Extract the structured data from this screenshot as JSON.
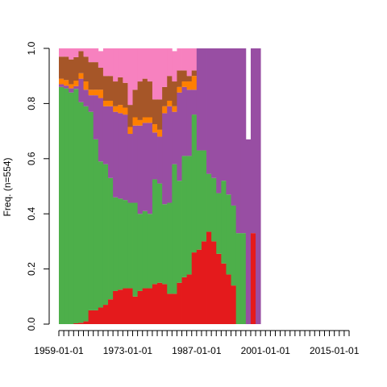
{
  "chart_data": {
    "type": "area",
    "title": "",
    "xlabel": "",
    "ylabel": "Freq. (n=554)",
    "x_tick_labels": [
      "1959-01-01",
      "1973-01-01",
      "1987-01-01",
      "2001-01-01",
      "2015-01-01"
    ],
    "x_tick_years": [
      1959,
      1973,
      1987,
      2001,
      2015
    ],
    "x_minor_tick_interval_years": 1,
    "xlim": [
      1959,
      2018
    ],
    "y_tick_labels": [
      "0.0",
      "0.2",
      "0.4",
      "0.6",
      "0.8",
      "1.0"
    ],
    "ylim": [
      0,
      1
    ],
    "stacked": true,
    "step": true,
    "legend": "none",
    "grid": false,
    "years": [
      1959,
      1960,
      1961,
      1962,
      1963,
      1964,
      1965,
      1966,
      1967,
      1968,
      1969,
      1970,
      1971,
      1972,
      1973,
      1974,
      1975,
      1976,
      1977,
      1978,
      1979,
      1980,
      1981,
      1982,
      1983,
      1984,
      1985,
      1986,
      1987,
      1988,
      1989,
      1990,
      1991,
      1992,
      1993,
      1994,
      1995,
      1996,
      1997,
      1998,
      1999,
      2000,
      2001,
      2002,
      2003,
      2004
    ],
    "series": [
      {
        "color": "#E41A1C",
        "values": [
          0,
          0,
          0,
          0.003,
          0.005,
          0.01,
          0.05,
          0.05,
          0.06,
          0.07,
          0.09,
          0.12,
          0.125,
          0.13,
          0.13,
          0.1,
          0.12,
          0.13,
          0.13,
          0.145,
          0.15,
          0.145,
          0.11,
          0.11,
          0.15,
          0.17,
          0.18,
          0.26,
          0.27,
          0.3,
          0.335,
          0.3,
          0.255,
          0.22,
          0.18,
          0.14,
          0,
          0,
          0,
          0.33,
          0,
          0,
          0,
          0,
          0,
          0
        ]
      },
      {
        "color": "#4DAF4A",
        "values": [
          0.86,
          0.855,
          0.84,
          0.85,
          0.8,
          0.78,
          0.72,
          0.62,
          0.53,
          0.51,
          0.44,
          0.34,
          0.33,
          0.32,
          0.31,
          0.34,
          0.28,
          0.28,
          0.27,
          0.38,
          0.36,
          0.29,
          0.33,
          0.47,
          0.37,
          0.44,
          0.43,
          0.5,
          0.36,
          0.33,
          0.21,
          0.23,
          0.22,
          0.3,
          0.29,
          0.29,
          0.33,
          0.33,
          0,
          0,
          0,
          0,
          0,
          0,
          0,
          0
        ]
      },
      {
        "color": "#984EA3",
        "values": [
          0.01,
          0.01,
          0.015,
          0.01,
          0.085,
          0.06,
          0.06,
          0.16,
          0.23,
          0.21,
          0.26,
          0.31,
          0.31,
          0.31,
          0.25,
          0.28,
          0.32,
          0.32,
          0.33,
          0.17,
          0.17,
          0.33,
          0.35,
          0.19,
          0.32,
          0.25,
          0.24,
          0.09,
          0.37,
          0.37,
          0.455,
          0.47,
          0.525,
          0.48,
          0.53,
          0.57,
          0.67,
          0.67,
          0.67,
          0.67,
          1.0,
          0,
          0,
          0,
          0,
          0
        ]
      },
      {
        "color": "#FF7F00",
        "values": [
          0.02,
          0.02,
          0.015,
          0.02,
          0.02,
          0.03,
          0.02,
          0.02,
          0.03,
          0.02,
          0.02,
          0.02,
          0.03,
          0.025,
          0.025,
          0.03,
          0.02,
          0.02,
          0.02,
          0.03,
          0.025,
          0.025,
          0.02,
          0.02,
          0.02,
          0.02,
          0.03,
          0.05,
          0,
          0,
          0,
          0,
          0,
          0,
          0,
          0,
          0,
          0,
          0,
          0,
          0,
          0,
          0,
          0,
          0,
          0
        ]
      },
      {
        "color": "#A65628",
        "values": [
          0.08,
          0.085,
          0.09,
          0.085,
          0.08,
          0.09,
          0.1,
          0.1,
          0.08,
          0.09,
          0.09,
          0.09,
          0.1,
          0.09,
          0.08,
          0.1,
          0.14,
          0.14,
          0.13,
          0.09,
          0.11,
          0.07,
          0.09,
          0.09,
          0.06,
          0.04,
          0.02,
          0.02,
          0,
          0,
          0,
          0,
          0,
          0,
          0,
          0,
          0,
          0,
          0,
          0,
          0,
          0,
          0,
          0,
          0,
          0
        ]
      },
      {
        "color": "#F781BF",
        "values": [
          0.03,
          0.03,
          0.04,
          0.032,
          0.01,
          0.03,
          0.05,
          0.05,
          0.06,
          0.1,
          0.1,
          0.12,
          0.105,
          0.125,
          0.205,
          0.15,
          0.12,
          0.11,
          0.12,
          0.185,
          0.185,
          0.14,
          0.1,
          0.11,
          0.08,
          0.08,
          0.1,
          0.08,
          0,
          0,
          0,
          0,
          0,
          0,
          0,
          0,
          0,
          0,
          0,
          0,
          0,
          0,
          0,
          0,
          0,
          0
        ]
      }
    ]
  }
}
